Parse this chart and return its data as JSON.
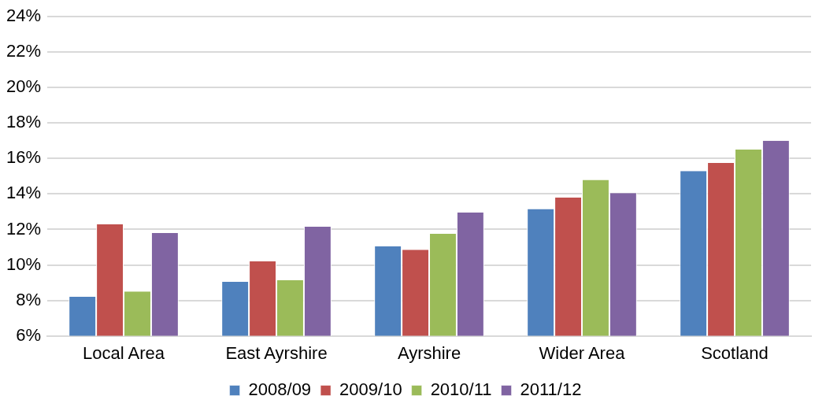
{
  "chart_data": {
    "type": "bar",
    "categories": [
      "Local Area",
      "East Ayrshire",
      "Ayrshire",
      "Wider Area",
      "Scotland"
    ],
    "series": [
      {
        "name": "2008/09",
        "color": "#4f81bd",
        "values": [
          8.2,
          9.05,
          11.05,
          13.15,
          15.3
        ]
      },
      {
        "name": "2009/10",
        "color": "#c0504d",
        "values": [
          12.3,
          10.2,
          10.85,
          13.8,
          15.75
        ]
      },
      {
        "name": "2010/11",
        "color": "#9bbb59",
        "values": [
          8.5,
          9.15,
          11.75,
          14.8,
          16.5
        ]
      },
      {
        "name": "2011/12",
        "color": "#8064a2",
        "values": [
          11.8,
          12.15,
          12.95,
          14.05,
          17
        ]
      }
    ],
    "ylim": [
      6,
      24
    ],
    "yticks": [
      {
        "value": 6,
        "label": "6%"
      },
      {
        "value": 8,
        "label": "8%"
      },
      {
        "value": 10,
        "label": "10%"
      },
      {
        "value": 12,
        "label": "12%"
      },
      {
        "value": 14,
        "label": "14%"
      },
      {
        "value": 16,
        "label": "16%"
      },
      {
        "value": 18,
        "label": "18%"
      },
      {
        "value": 20,
        "label": "20%"
      },
      {
        "value": 22,
        "label": "22%"
      },
      {
        "value": 24,
        "label": "24%"
      }
    ],
    "grid": "y",
    "legend": "bottom"
  }
}
